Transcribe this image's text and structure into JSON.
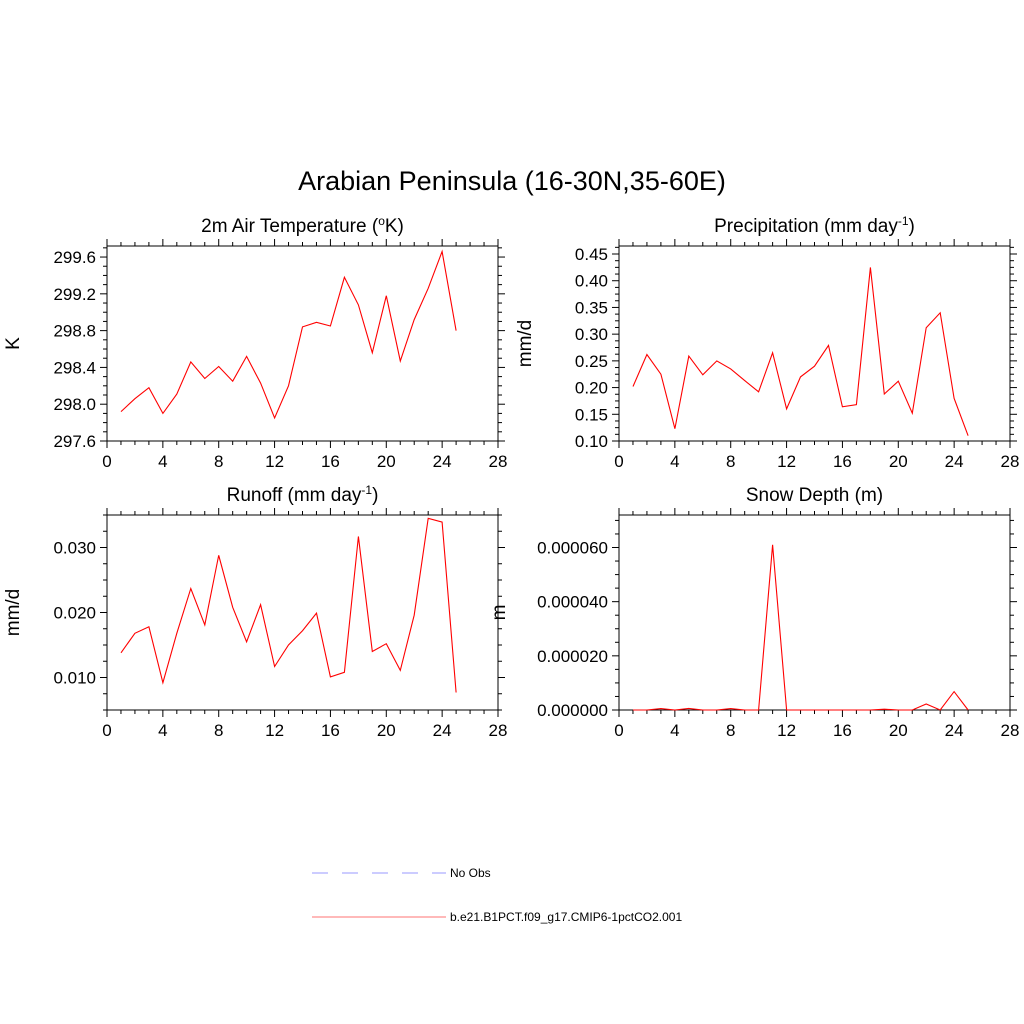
{
  "figure": {
    "title": "Arabian Peninsula (16-30N,35-60E)"
  },
  "legend": {
    "items": [
      {
        "label": "No Obs",
        "color": "#9999ff",
        "style": "dashed"
      },
      {
        "label": "b.e21.B1PCT.f09_g17.CMIP6-1pctCO2.001",
        "color": "#ff0000",
        "style": "solid"
      }
    ]
  },
  "chart_data": [
    {
      "type": "line",
      "title": "2m Air Temperature (",
      "title_sup": "o",
      "title_end": "K)",
      "ylabel": "K",
      "xlim": [
        0,
        28
      ],
      "ylim": [
        297.6,
        299.72
      ],
      "xticks": [
        "0",
        "4",
        "8",
        "12",
        "16",
        "20",
        "24",
        "28"
      ],
      "yticks": [
        "297.6",
        "298.0",
        "298.4",
        "298.8",
        "299.2",
        "299.6"
      ],
      "ytick_values": [
        297.6,
        298.0,
        298.4,
        298.8,
        299.2,
        299.6
      ],
      "series": [
        {
          "color": "#ff0000",
          "x": [
            1,
            2,
            3,
            4,
            5,
            6,
            7,
            8,
            9,
            10,
            11,
            12,
            13,
            14,
            15,
            16,
            17,
            18,
            19,
            20,
            21,
            22,
            23,
            24,
            25
          ],
          "values": [
            297.92,
            298.06,
            298.18,
            297.9,
            298.11,
            298.46,
            298.28,
            298.41,
            298.25,
            298.52,
            298.23,
            297.85,
            298.2,
            298.84,
            298.89,
            298.85,
            299.38,
            299.08,
            298.56,
            299.18,
            298.47,
            298.92,
            299.26,
            299.66,
            298.8
          ]
        }
      ]
    },
    {
      "type": "line",
      "title": "Precipitation (mm day",
      "title_sup": "-1",
      "title_end": ")",
      "ylabel": "mm/d",
      "xlim": [
        0,
        28
      ],
      "ylim": [
        0.1,
        0.465
      ],
      "xticks": [
        "0",
        "4",
        "8",
        "12",
        "16",
        "20",
        "24",
        "28"
      ],
      "yticks": [
        "0.10",
        "0.15",
        "0.20",
        "0.25",
        "0.30",
        "0.35",
        "0.40",
        "0.45"
      ],
      "ytick_values": [
        0.1,
        0.15,
        0.2,
        0.25,
        0.3,
        0.35,
        0.4,
        0.45
      ],
      "series": [
        {
          "color": "#ff0000",
          "x": [
            1,
            2,
            3,
            4,
            5,
            6,
            7,
            8,
            9,
            10,
            11,
            12,
            13,
            14,
            15,
            16,
            17,
            18,
            19,
            20,
            21,
            22,
            23,
            24,
            25
          ],
          "values": [
            0.202,
            0.262,
            0.225,
            0.123,
            0.259,
            0.224,
            0.25,
            0.235,
            0.213,
            0.192,
            0.265,
            0.16,
            0.22,
            0.24,
            0.279,
            0.164,
            0.168,
            0.425,
            0.188,
            0.212,
            0.152,
            0.312,
            0.34,
            0.18,
            0.11
          ]
        }
      ]
    },
    {
      "type": "line",
      "title": "Runoff (mm day",
      "title_sup": "-1",
      "title_end": ")",
      "ylabel": "mm/d",
      "xlim": [
        0,
        28
      ],
      "ylim": [
        0.005,
        0.035
      ],
      "xticks": [
        "0",
        "4",
        "8",
        "12",
        "16",
        "20",
        "24",
        "28"
      ],
      "yticks": [
        "0.010",
        "0.020",
        "0.030"
      ],
      "ytick_values": [
        0.01,
        0.02,
        0.03
      ],
      "series": [
        {
          "color": "#ff0000",
          "x": [
            1,
            2,
            3,
            4,
            5,
            6,
            7,
            8,
            9,
            10,
            11,
            12,
            13,
            14,
            15,
            16,
            17,
            18,
            19,
            20,
            21,
            22,
            23,
            24,
            25
          ],
          "values": [
            0.0138,
            0.0168,
            0.0178,
            0.0092,
            0.0168,
            0.0237,
            0.0181,
            0.0288,
            0.0208,
            0.0155,
            0.0212,
            0.0117,
            0.015,
            0.0172,
            0.0199,
            0.0101,
            0.0108,
            0.0317,
            0.014,
            0.0152,
            0.0111,
            0.0196,
            0.0345,
            0.0339,
            0.0077
          ]
        }
      ]
    },
    {
      "type": "line",
      "title": "Snow Depth (m)",
      "title_sup": "",
      "title_end": "",
      "ylabel": "m",
      "xlim": [
        0,
        28
      ],
      "ylim": [
        0,
        7.2e-05
      ],
      "xticks": [
        "0",
        "4",
        "8",
        "12",
        "16",
        "20",
        "24",
        "28"
      ],
      "yticks": [
        "0.000000",
        "0.000020",
        "0.000040",
        "0.000060"
      ],
      "ytick_values": [
        0,
        2e-05,
        4e-05,
        6e-05
      ],
      "series": [
        {
          "color": "#ff0000",
          "x": [
            1,
            2,
            3,
            4,
            5,
            6,
            7,
            8,
            9,
            10,
            11,
            12,
            13,
            14,
            15,
            16,
            17,
            18,
            19,
            20,
            21,
            22,
            23,
            24,
            25
          ],
          "values": [
            0,
            0,
            5e-07,
            0,
            6e-07,
            0,
            0,
            5e-07,
            0,
            0,
            6.1e-05,
            0,
            0,
            0,
            0,
            0,
            0,
            0,
            3e-07,
            0,
            0,
            2.2e-06,
            0,
            6.8e-06,
            0
          ]
        }
      ]
    }
  ]
}
